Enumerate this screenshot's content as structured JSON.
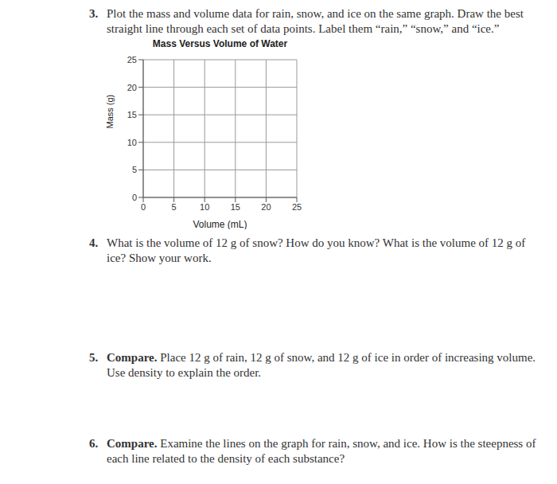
{
  "questions": [
    {
      "number": "3.",
      "text": "Plot the mass and volume data for rain, snow, and ice on the same graph. Draw the best straight line through each set of data points. Label them “rain,” “snow,” and “ice.”"
    },
    {
      "number": "4.",
      "text": "What is the volume of 12 g of snow? How do you know? What is the volume of 12 g of ice? Show your work."
    },
    {
      "number": "5.",
      "lead": "Compare.",
      "text": "Place 12 g of rain, 12 g of snow, and 12 g of ice in order of increasing volume. Use density to explain the order."
    },
    {
      "number": "6.",
      "lead": "Compare.",
      "text": "Examine the lines on the graph for rain, snow, and ice. How is the steepness of each line related to the density of each substance?"
    }
  ],
  "chart_data": {
    "type": "scatter",
    "title": "Mass Versus Volume of Water",
    "x_label": "Volume (mL)",
    "y_label": "Mass (g)",
    "xlim": [
      0,
      25
    ],
    "ylim": [
      0,
      25
    ],
    "xticks": [
      0,
      5,
      10,
      15,
      20,
      25
    ],
    "yticks": [
      0,
      5,
      10,
      15,
      20,
      25
    ],
    "grid": true,
    "series": []
  }
}
